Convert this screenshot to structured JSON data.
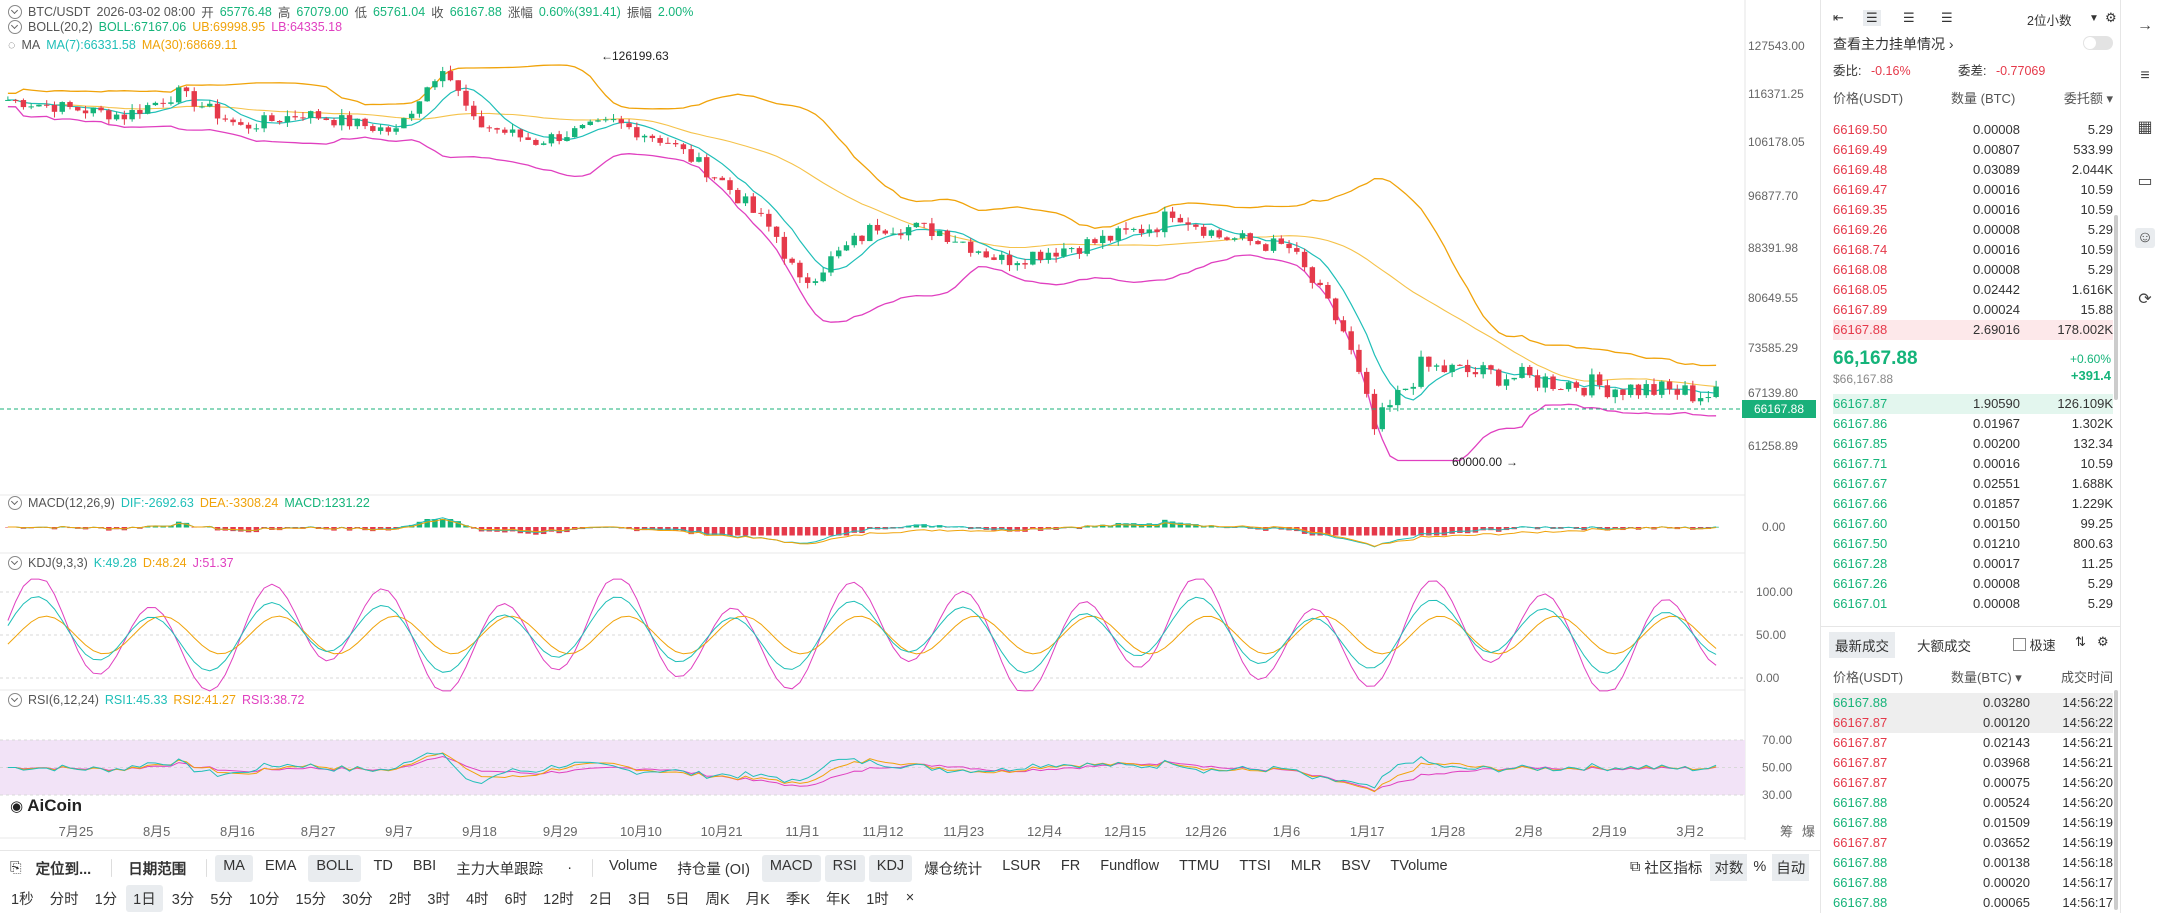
{
  "symbol": "BTC/USDT",
  "header": {
    "time": "2026-03-02 08:00",
    "open_label": "开",
    "open": "65776.48",
    "high_label": "高",
    "high": "67079.00",
    "low_label": "低",
    "low": "65761.04",
    "close_label": "收",
    "close": "66167.88",
    "change_label": "涨幅",
    "change": "0.60%(391.41)",
    "amp_label": "振幅",
    "amp": "2.00%"
  },
  "boll": {
    "name": "BOLL(20,2)",
    "mid": "BOLL:67167.06",
    "ub": "UB:69998.95",
    "lb": "LB:64335.18"
  },
  "ma": {
    "name": "MA",
    "ma7": "MA(7):66331.58",
    "ma30": "MA(30):68669.11"
  },
  "macd": {
    "name": "MACD(12,26,9)",
    "dif": "DIF:-2692.63",
    "dea": "DEA:-3308.24",
    "macd": "MACD:1231.22",
    "zero": "0.00"
  },
  "kdj": {
    "name": "KDJ(9,3,3)",
    "k": "K:49.28",
    "d": "D:48.24",
    "j": "J:51.37",
    "ticks": [
      "100.00",
      "50.00",
      "0.00"
    ]
  },
  "rsi": {
    "name": "RSI(6,12,24)",
    "r1": "RSI1:45.33",
    "r2": "RSI2:41.27",
    "r3": "RSI3:38.72",
    "ticks": [
      "70.00",
      "50.00",
      "30.00"
    ]
  },
  "price_axis": [
    "127543.00",
    "116371.25",
    "106178.05",
    "96877.70",
    "88391.98",
    "80649.55",
    "73585.29",
    "67139.80",
    "61258.89"
  ],
  "current_price_tag": "66167.88",
  "annotations": {
    "high": "126199.63",
    "low": "60000.00"
  },
  "date_axis": [
    "7月25",
    "8月5",
    "8月16",
    "8月27",
    "9月7",
    "9月18",
    "9月29",
    "10月10",
    "10月21",
    "11月1",
    "11月12",
    "11月23",
    "12月4",
    "12月15",
    "12月26",
    "1月6",
    "1月17",
    "1月28",
    "2月8",
    "2月19",
    "3月2"
  ],
  "axis_corner": [
    "筹",
    "爆"
  ],
  "logo": "AiCoin",
  "toolbar1": {
    "locate": "定位到...",
    "range": "日期范围",
    "indicators": [
      "MA",
      "EMA",
      "BOLL",
      "TD",
      "BBI",
      "主力大单跟踪"
    ],
    "sub_indicators": [
      "Volume",
      "持仓量 (OI)",
      "MACD",
      "RSI",
      "KDJ",
      "爆仓统计",
      "LSUR",
      "FR",
      "Fundflow",
      "TTMU",
      "TTSI",
      "MLR",
      "BSV",
      "TVolume"
    ],
    "community": "社区指标",
    "log": "对数",
    "pct": "%",
    "auto": "自动"
  },
  "toolbar2": {
    "intervals": [
      "1秒",
      "分时",
      "1分",
      "1日",
      "3分",
      "5分",
      "10分",
      "15分",
      "30分",
      "2时",
      "3时",
      "4时",
      "6时",
      "12时",
      "2日",
      "3日",
      "5日",
      "周K",
      "月K",
      "季K",
      "年K",
      "1时"
    ],
    "close": "×"
  },
  "orderbook": {
    "decimals": "2位小数",
    "title": "查看主力挂单情况",
    "ratio_label": "委比:",
    "ratio": "-0.16%",
    "diff_label": "委差:",
    "diff": "-0.77069",
    "headers": [
      "价格(USDT)",
      "数量 (BTC)",
      "委托额"
    ],
    "asks": [
      [
        "66169.50",
        "0.00008",
        "5.29"
      ],
      [
        "66169.49",
        "0.00807",
        "533.99"
      ],
      [
        "66169.48",
        "0.03089",
        "2.044K"
      ],
      [
        "66169.47",
        "0.00016",
        "10.59"
      ],
      [
        "66169.35",
        "0.00016",
        "10.59"
      ],
      [
        "66169.26",
        "0.00008",
        "5.29"
      ],
      [
        "66168.74",
        "0.00016",
        "10.59"
      ],
      [
        "66168.08",
        "0.00008",
        "5.29"
      ],
      [
        "66168.05",
        "0.02442",
        "1.616K"
      ],
      [
        "66167.89",
        "0.00024",
        "15.88"
      ],
      [
        "66167.88",
        "2.69016",
        "178.002K"
      ]
    ],
    "last_price": "66,167.88",
    "last_price_usd": "$66,167.88",
    "last_pct": "+0.60%",
    "last_change": "+391.4",
    "bids": [
      [
        "66167.87",
        "1.90590",
        "126.109K"
      ],
      [
        "66167.86",
        "0.01967",
        "1.302K"
      ],
      [
        "66167.85",
        "0.00200",
        "132.34"
      ],
      [
        "66167.71",
        "0.00016",
        "10.59"
      ],
      [
        "66167.67",
        "0.02551",
        "1.688K"
      ],
      [
        "66167.66",
        "0.01857",
        "1.229K"
      ],
      [
        "66167.60",
        "0.00150",
        "99.25"
      ],
      [
        "66167.50",
        "0.01210",
        "800.63"
      ],
      [
        "66167.28",
        "0.00017",
        "11.25"
      ],
      [
        "66167.26",
        "0.00008",
        "5.29"
      ],
      [
        "66167.01",
        "0.00008",
        "5.29"
      ]
    ]
  },
  "trades": {
    "tab_latest": "最新成交",
    "tab_big": "大额成交",
    "fast": "极速",
    "headers": [
      "价格(USDT)",
      "数量(BTC)",
      "成交时间"
    ],
    "rows": [
      [
        "66167.88",
        "0.03280",
        "14:56:22",
        "g"
      ],
      [
        "66167.87",
        "0.00120",
        "14:56:22",
        "r"
      ],
      [
        "66167.87",
        "0.02143",
        "14:56:21",
        "r"
      ],
      [
        "66167.87",
        "0.03968",
        "14:56:21",
        "r"
      ],
      [
        "66167.87",
        "0.00075",
        "14:56:20",
        "r"
      ],
      [
        "66167.88",
        "0.00524",
        "14:56:20",
        "g"
      ],
      [
        "66167.88",
        "0.01509",
        "14:56:19",
        "g"
      ],
      [
        "66167.87",
        "0.03652",
        "14:56:19",
        "r"
      ],
      [
        "66167.88",
        "0.00138",
        "14:56:18",
        "g"
      ],
      [
        "66167.88",
        "0.00020",
        "14:56:17",
        "g"
      ],
      [
        "66167.88",
        "0.00065",
        "14:56:17",
        "g"
      ]
    ]
  },
  "colors": {
    "up": "#15b47a",
    "down": "#e5394a",
    "mid": "#f0a30a",
    "lower": "#e040c0",
    "ma7": "#1fbfb8"
  }
}
